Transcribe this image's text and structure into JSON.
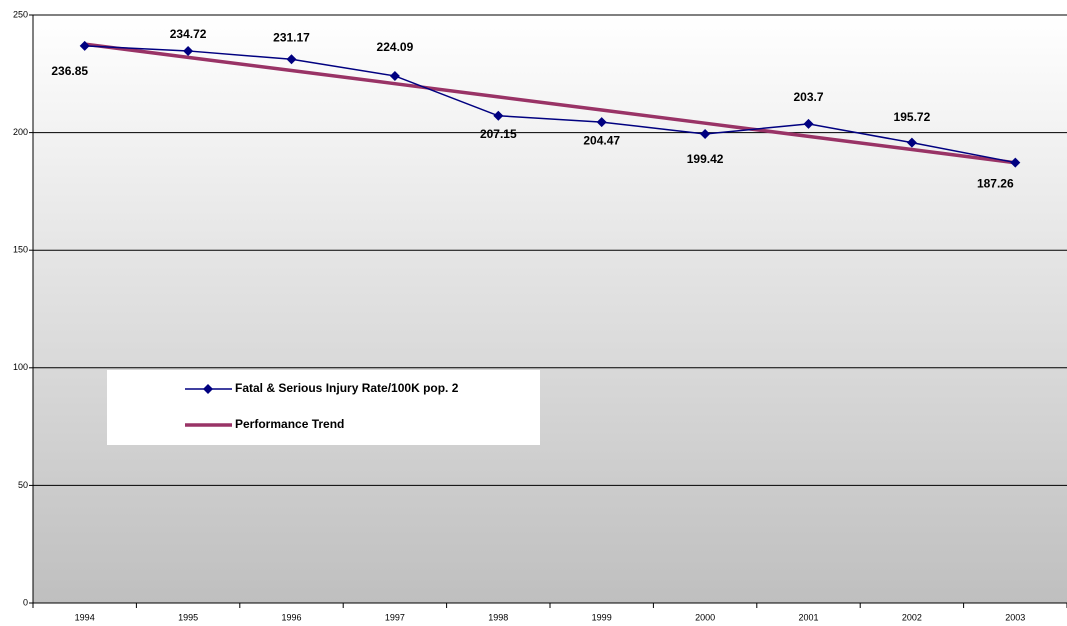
{
  "chart_data": {
    "type": "line",
    "categories": [
      "1994",
      "1995",
      "1996",
      "1997",
      "1998",
      "1999",
      "2000",
      "2001",
      "2002",
      "2003"
    ],
    "series": [
      {
        "name": "Fatal & Serious Injury Rate/100K pop. 2",
        "color": "#000080",
        "values": [
          236.85,
          234.72,
          231.17,
          224.09,
          207.15,
          204.47,
          199.42,
          203.7,
          195.72,
          187.26
        ]
      },
      {
        "name": "Performance Trend",
        "color": "#993366",
        "values": [
          237.6,
          232.0,
          226.4,
          220.8,
          215.2,
          209.6,
          204.0,
          198.4,
          192.8,
          187.2
        ]
      }
    ],
    "ylim": [
      0,
      250
    ],
    "yticks": [
      0,
      50,
      100,
      150,
      200,
      250
    ],
    "grid": true
  }
}
